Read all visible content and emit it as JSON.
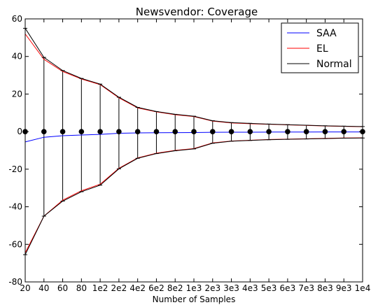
{
  "chart_data": {
    "type": "line",
    "title": "Newsvendor: Coverage",
    "xlabel": "Number of Samples",
    "ylabel": "",
    "ylim": [
      -80,
      60
    ],
    "yticks": [
      -80,
      -60,
      -40,
      -20,
      0,
      20,
      40,
      60
    ],
    "grid": false,
    "legend_position": "top-right",
    "categories": [
      "20",
      "40",
      "60",
      "80",
      "1e2",
      "2e2",
      "4e2",
      "6e2",
      "8e2",
      "1e3",
      "2e3",
      "3e3",
      "4e3",
      "5e3",
      "6e3",
      "7e3",
      "8e3",
      "9e3",
      "1e4"
    ],
    "center_points": [
      0,
      0,
      0,
      0,
      0,
      0,
      0,
      0,
      0,
      0,
      0,
      0,
      0,
      0,
      0,
      0,
      0,
      0,
      0
    ],
    "series": [
      {
        "name": "SAA",
        "color": "#0000ff",
        "values": [
          -5.5,
          -3,
          -2.2,
          -1.8,
          -1.5,
          -0.9,
          -0.7,
          -0.6,
          -0.55,
          -0.5,
          -0.35,
          -0.3,
          -0.3,
          -0.25,
          -0.25,
          -0.25,
          -0.2,
          -0.2,
          -0.2
        ]
      },
      {
        "name": "EL",
        "color": "#ff0000",
        "lower": [
          -64.5,
          -45,
          -36.5,
          -31.5,
          -28,
          -19.5,
          -14,
          -11.5,
          -10,
          -9,
          -6,
          -5,
          -4.6,
          -4.2,
          -4,
          -3.8,
          -3.6,
          -3.4,
          -3.3
        ],
        "upper": [
          52,
          38.5,
          32,
          28,
          25,
          18,
          12.6,
          10.5,
          9,
          8,
          5.6,
          4.6,
          4.2,
          3.9,
          3.6,
          3.3,
          3,
          2.8,
          2.6
        ]
      },
      {
        "name": "Normal",
        "color": "#000000",
        "lower": [
          -65.5,
          -45,
          -37,
          -32,
          -28.5,
          -19.8,
          -14.2,
          -11.7,
          -10.2,
          -9.2,
          -6.2,
          -5.1,
          -4.7,
          -4.3,
          -4.1,
          -3.9,
          -3.7,
          -3.5,
          -3.4
        ],
        "upper": [
          55,
          39.5,
          32.5,
          28.3,
          25.3,
          18.3,
          12.9,
          10.7,
          9.2,
          8.2,
          5.8,
          4.8,
          4.4,
          4,
          3.7,
          3.4,
          3.1,
          2.9,
          2.7
        ]
      }
    ]
  }
}
